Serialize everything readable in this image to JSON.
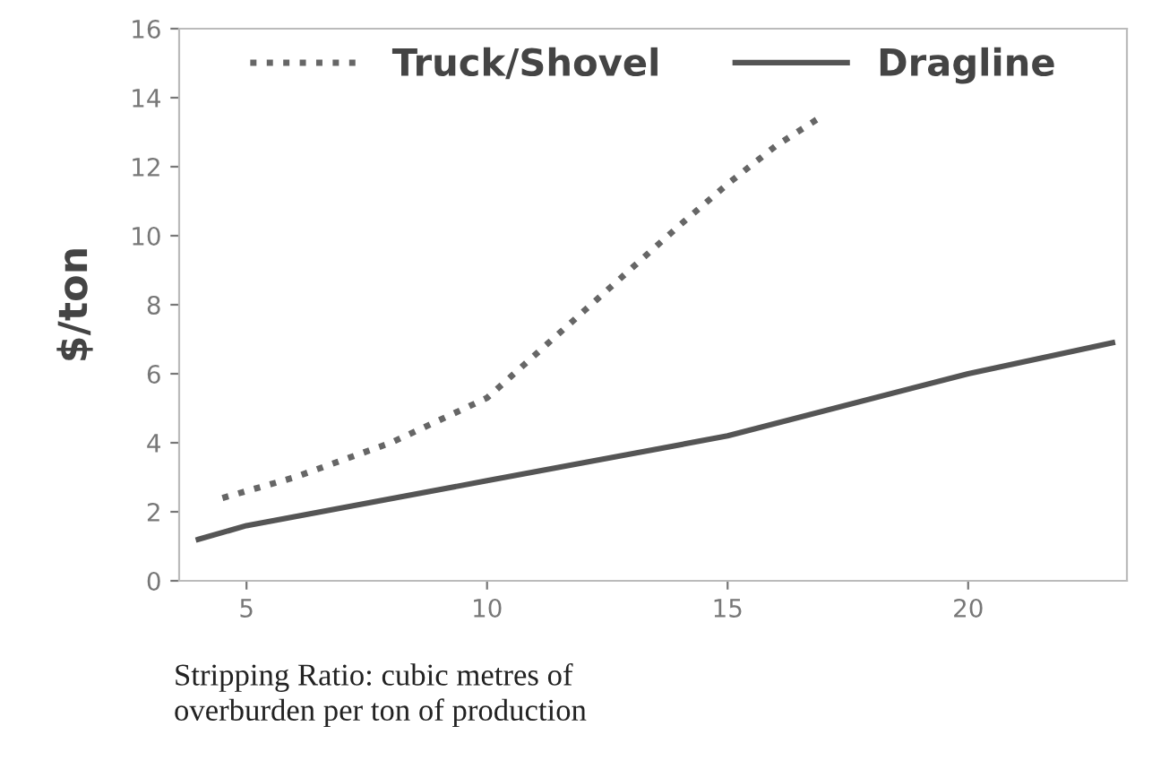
{
  "chart_data": {
    "type": "line",
    "ylabel": "$/ton",
    "xlabel": "Stripping Ratio: cubic metres of\noverburden per ton of production",
    "xlim": [
      3.6,
      23.3
    ],
    "xticks": [
      5,
      10,
      15,
      20
    ],
    "ylim": [
      0,
      16
    ],
    "yticks": [
      0,
      2,
      4,
      6,
      8,
      10,
      12,
      14,
      16
    ],
    "grid": false,
    "legend": "top",
    "marker": "none",
    "series": [
      {
        "name": "Truck/Shovel",
        "color": "#666666",
        "line_style": "dotted",
        "x": [
          4.5,
          6,
          8,
          10,
          12,
          14,
          15,
          16,
          17
        ],
        "values": [
          2.4,
          3.0,
          4.0,
          5.3,
          7.8,
          10.3,
          11.5,
          12.6,
          13.5
        ]
      },
      {
        "name": "Dragline",
        "color": "#555555",
        "line_style": "solid",
        "x": [
          4,
          5,
          10,
          15,
          20,
          23
        ],
        "values": [
          1.2,
          1.6,
          2.9,
          4.2,
          6.0,
          6.9
        ]
      }
    ]
  }
}
